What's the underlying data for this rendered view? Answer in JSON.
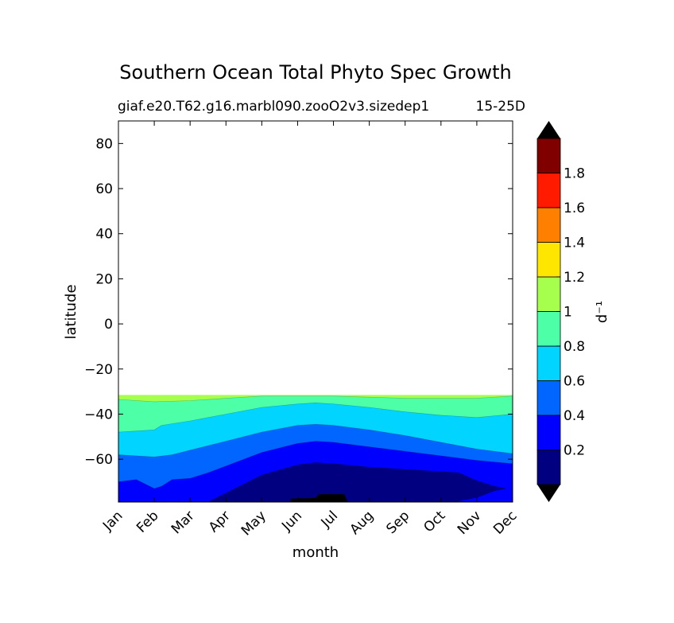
{
  "chart_data": {
    "type": "heatmap",
    "title": "Southern Ocean Total Phyto Spec Growth",
    "subtitle_left": "giaf.e20.T62.g16.marbl090.zooO2v3.sizedep1",
    "subtitle_right": "15-25D",
    "xlabel": "month",
    "ylabel": "latitude",
    "x_categories": [
      "Jan",
      "Feb",
      "Mar",
      "Apr",
      "May",
      "Jun",
      "Jul",
      "Aug",
      "Sep",
      "Oct",
      "Nov",
      "Dec"
    ],
    "xlim": [
      0,
      11
    ],
    "ylim": [
      -79,
      90
    ],
    "y_ticks": [
      "80",
      "60",
      "40",
      "20",
      "0",
      "−20",
      "−40",
      "−60"
    ],
    "data_lat_top": -31.5,
    "contour_boundaries": [
      {
        "level": 0.8,
        "points": [
          [
            0,
            -33.5
          ],
          [
            1,
            -34.5
          ],
          [
            2,
            -34
          ],
          [
            3,
            -33
          ],
          [
            4,
            -32
          ],
          [
            4.5,
            -32
          ],
          [
            5,
            -32
          ],
          [
            5.5,
            -32
          ],
          [
            6,
            -32
          ],
          [
            7,
            -32.5
          ],
          [
            8,
            -33
          ],
          [
            9,
            -33
          ],
          [
            10,
            -33
          ],
          [
            11,
            -32
          ]
        ]
      },
      {
        "level": 0.6,
        "points": [
          [
            0,
            -48
          ],
          [
            1,
            -47
          ],
          [
            1.2,
            -45
          ],
          [
            2,
            -43
          ],
          [
            3,
            -40
          ],
          [
            4,
            -37
          ],
          [
            5,
            -35.5
          ],
          [
            5.5,
            -35
          ],
          [
            6,
            -35.5
          ],
          [
            7,
            -37
          ],
          [
            8,
            -39
          ],
          [
            9,
            -40.5
          ],
          [
            10,
            -41.5
          ],
          [
            11,
            -40
          ]
        ]
      },
      {
        "level": 0.4,
        "points": [
          [
            0,
            -58
          ],
          [
            1,
            -59
          ],
          [
            1.5,
            -58
          ],
          [
            2,
            -56
          ],
          [
            3,
            -52
          ],
          [
            4,
            -48
          ],
          [
            5,
            -45
          ],
          [
            5.5,
            -44.5
          ],
          [
            6,
            -45
          ],
          [
            7,
            -47
          ],
          [
            8,
            -49.5
          ],
          [
            9,
            -52.5
          ],
          [
            10,
            -55.5
          ],
          [
            11,
            -57.5
          ]
        ]
      },
      {
        "level": 0.2,
        "points": [
          [
            0,
            -70
          ],
          [
            0.5,
            -69
          ],
          [
            1,
            -73
          ],
          [
            1.2,
            -72
          ],
          [
            1.5,
            -69
          ],
          [
            2,
            -68.5
          ],
          [
            2.5,
            -66
          ],
          [
            3,
            -63
          ],
          [
            4,
            -57
          ],
          [
            5,
            -53
          ],
          [
            5.5,
            -52
          ],
          [
            6,
            -52.5
          ],
          [
            7,
            -54.5
          ],
          [
            8,
            -56.5
          ],
          [
            9,
            -58.5
          ],
          [
            10,
            -60.5
          ],
          [
            11,
            -62
          ]
        ]
      },
      {
        "level": 0.0,
        "points": [
          [
            2.5,
            -79
          ],
          [
            3,
            -75
          ],
          [
            4,
            -67
          ],
          [
            5,
            -62.5
          ],
          [
            5.5,
            -61.5
          ],
          [
            6,
            -62
          ],
          [
            7,
            -63.5
          ],
          [
            8,
            -64.5
          ],
          [
            9,
            -65.5
          ],
          [
            9.5,
            -66
          ],
          [
            10,
            -69.5
          ],
          [
            10.5,
            -72
          ],
          [
            10.8,
            -73
          ],
          [
            10.5,
            -74
          ],
          [
            10,
            -77
          ],
          [
            9.5,
            -78.5
          ],
          [
            9.3,
            -79
          ]
        ]
      }
    ],
    "colorbar": {
      "label": "d⁻¹",
      "levels": [
        0,
        0.2,
        0.4,
        0.6,
        0.8,
        1.0,
        1.2,
        1.4,
        1.6,
        1.8,
        2.0
      ],
      "tick_labels": [
        "0.2",
        "0.4",
        "0.6",
        "0.8",
        "1",
        "1.2",
        "1.4",
        "1.6",
        "1.8"
      ],
      "colors": [
        "#000080",
        "#0000ff",
        "#0066ff",
        "#00d4ff",
        "#4dffa6",
        "#a6ff4d",
        "#ffe600",
        "#ff7f00",
        "#ff1a00",
        "#800000"
      ],
      "under_color": "#000000",
      "over_color": "#000000"
    }
  }
}
